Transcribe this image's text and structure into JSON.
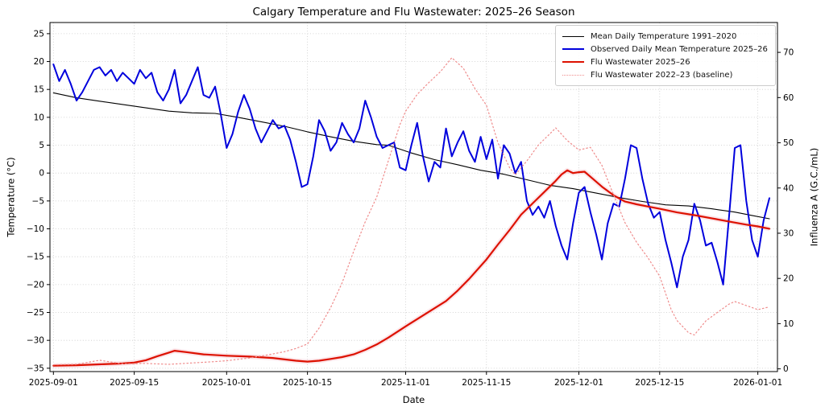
{
  "chart_data": {
    "type": "line",
    "title": "Calgary Temperature and Flu Wastewater: 2025–26 Season",
    "xlabel": "Date",
    "ylabel_left": "Temperature (°C)",
    "ylabel_right": "Influenza A (G.C./mL)",
    "grid": {
      "on": true,
      "style": "dotted",
      "color": "#c9c9c9"
    },
    "band_color": "#f4b8c4",
    "legend": {
      "position": "upper right"
    },
    "x_axis": {
      "start_date": "2025-09-01",
      "tick_labels": [
        "2025-09-01",
        "2025-09-15",
        "2025-10-01",
        "2025-10-15",
        "2025-11-01",
        "2025-11-15",
        "2025-12-01",
        "2025-12-15",
        "2026-01-01"
      ],
      "tick_days": [
        0,
        14,
        30,
        44,
        61,
        75,
        91,
        105,
        122
      ],
      "domain_days": [
        -0.6,
        125.4
      ]
    },
    "y_left": {
      "lim": [
        -35.6,
        27.0
      ],
      "ticks": [
        25,
        20,
        15,
        10,
        5,
        0,
        -5,
        -10,
        -15,
        -20,
        -25,
        -30,
        -35
      ]
    },
    "y_right": {
      "lim": [
        -0.6,
        76.6
      ],
      "ticks": [
        70,
        60,
        50,
        40,
        30,
        20,
        10,
        0
      ]
    },
    "series": [
      {
        "id": "mean_temp_1991_2020",
        "name": "Mean Daily Temperature 1991–2020",
        "axis": "left",
        "color": "#000000",
        "width": 1.1,
        "dash": "solid",
        "points": [
          [
            0,
            14.4
          ],
          [
            4,
            13.5
          ],
          [
            8,
            12.9
          ],
          [
            12,
            12.3
          ],
          [
            16,
            11.7
          ],
          [
            20,
            11.1
          ],
          [
            24,
            10.8
          ],
          [
            28,
            10.7
          ],
          [
            32,
            10.0
          ],
          [
            36,
            9.2
          ],
          [
            40,
            8.4
          ],
          [
            44,
            7.4
          ],
          [
            48,
            6.5
          ],
          [
            52,
            5.7
          ],
          [
            56,
            5.1
          ],
          [
            58,
            5.0
          ],
          [
            62,
            3.6
          ],
          [
            66,
            2.4
          ],
          [
            70,
            1.5
          ],
          [
            74,
            0.5
          ],
          [
            78,
            -0.2
          ],
          [
            82,
            -1.2
          ],
          [
            86,
            -2.2
          ],
          [
            90,
            -2.8
          ],
          [
            94,
            -3.6
          ],
          [
            98,
            -4.4
          ],
          [
            102,
            -5.1
          ],
          [
            106,
            -5.7
          ],
          [
            110,
            -5.9
          ],
          [
            114,
            -6.4
          ],
          [
            118,
            -7.0
          ],
          [
            121,
            -7.6
          ],
          [
            124,
            -8.2
          ]
        ]
      },
      {
        "id": "observed_temp_2025_26",
        "name": "Observed Daily Mean Temperature 2025–26",
        "axis": "left",
        "color": "#0000dd",
        "width": 2.0,
        "dash": "solid",
        "start_day": 0,
        "values": [
          19.5,
          16.5,
          18.5,
          16,
          13,
          14.5,
          16.5,
          18.5,
          19,
          17.5,
          18.5,
          16.5,
          18,
          17,
          16,
          18.5,
          17,
          18,
          14.5,
          13,
          15,
          18.5,
          12.5,
          14,
          16.5,
          19,
          14,
          13.5,
          15.5,
          10.5,
          4.5,
          7,
          11,
          14,
          11.5,
          8,
          5.5,
          7.5,
          9.5,
          8,
          8.5,
          6,
          2,
          -2.5,
          -2,
          3,
          9.5,
          7.5,
          4,
          5.5,
          9,
          7,
          5.5,
          8,
          13,
          10,
          6.5,
          4.5,
          5,
          5.5,
          1,
          0.5,
          5,
          9,
          3,
          -1.5,
          2,
          1,
          8,
          3,
          5.5,
          7.5,
          4,
          2,
          6.5,
          2.5,
          6,
          -1,
          5,
          3.5,
          0,
          2,
          -5,
          -7.5,
          -6,
          -8,
          -5,
          -9.5,
          -13,
          -15.5,
          -9,
          -3.5,
          -2.5,
          -7,
          -11,
          -15.5,
          -9,
          -5.5,
          -6,
          -1,
          5,
          4.5,
          -1,
          -5.5,
          -8,
          -7,
          -12,
          -16,
          -20.5,
          -15,
          -12,
          -5.5,
          -8.5,
          -13,
          -12.5,
          -16,
          -20,
          -8,
          4.5,
          5,
          -5,
          -12,
          -15,
          -8.5,
          -4.5
        ]
      },
      {
        "id": "flu_2025_26",
        "name": "Flu Wastewater 2025–26",
        "axis": "right",
        "color": "#dd1100",
        "width": 2.2,
        "dash": "solid",
        "points": [
          [
            0,
            0.7
          ],
          [
            4,
            0.8
          ],
          [
            8,
            1.0
          ],
          [
            12,
            1.2
          ],
          [
            14,
            1.4
          ],
          [
            16,
            1.9
          ],
          [
            18,
            2.8
          ],
          [
            20,
            3.6
          ],
          [
            21,
            4.0
          ],
          [
            23,
            3.7
          ],
          [
            26,
            3.2
          ],
          [
            30,
            2.9
          ],
          [
            34,
            2.7
          ],
          [
            38,
            2.4
          ],
          [
            42,
            1.8
          ],
          [
            44,
            1.6
          ],
          [
            46,
            1.8
          ],
          [
            48,
            2.2
          ],
          [
            50,
            2.6
          ],
          [
            52,
            3.2
          ],
          [
            54,
            4.2
          ],
          [
            56,
            5.4
          ],
          [
            58,
            6.9
          ],
          [
            61,
            9.4
          ],
          [
            63,
            11.0
          ],
          [
            65,
            12.6
          ],
          [
            68,
            15.0
          ],
          [
            70,
            17.3
          ],
          [
            72,
            19.9
          ],
          [
            75,
            24.2
          ],
          [
            77,
            27.5
          ],
          [
            79,
            30.7
          ],
          [
            81,
            34.1
          ],
          [
            83,
            36.6
          ],
          [
            85,
            39.1
          ],
          [
            87,
            41.6
          ],
          [
            88,
            43.0
          ],
          [
            89,
            43.9
          ],
          [
            90,
            43.3
          ],
          [
            91,
            43.5
          ],
          [
            92,
            43.6
          ],
          [
            93,
            42.5
          ],
          [
            95,
            40.3
          ],
          [
            97,
            38.4
          ],
          [
            99,
            37.0
          ],
          [
            101,
            36.4
          ],
          [
            103,
            35.9
          ],
          [
            105,
            35.4
          ],
          [
            108,
            34.6
          ],
          [
            111,
            34.0
          ],
          [
            114,
            33.3
          ],
          [
            117,
            32.6
          ],
          [
            120,
            31.9
          ],
          [
            122,
            31.5
          ],
          [
            124,
            31.0
          ]
        ]
      },
      {
        "id": "flu_2022_23_baseline",
        "name": "Flu Wastewater 2022–23 (baseline)",
        "axis": "right",
        "color": "#ef8b8b",
        "width": 1.2,
        "dash": "dotted",
        "points": [
          [
            0,
            0.9
          ],
          [
            4,
            1.0
          ],
          [
            8,
            1.9
          ],
          [
            12,
            1.1
          ],
          [
            16,
            1.2
          ],
          [
            20,
            1.0
          ],
          [
            24,
            1.3
          ],
          [
            28,
            1.6
          ],
          [
            30,
            1.8
          ],
          [
            34,
            2.4
          ],
          [
            38,
            3.3
          ],
          [
            40,
            3.8
          ],
          [
            42,
            4.5
          ],
          [
            44,
            5.5
          ],
          [
            46,
            9.0
          ],
          [
            48,
            13.5
          ],
          [
            50,
            19.0
          ],
          [
            52,
            26.0
          ],
          [
            54,
            32.5
          ],
          [
            56,
            38.0
          ],
          [
            58,
            46.0
          ],
          [
            60,
            54.0
          ],
          [
            61,
            57.0
          ],
          [
            63,
            60.7
          ],
          [
            65,
            63.3
          ],
          [
            67,
            65.7
          ],
          [
            69,
            68.8
          ],
          [
            71,
            66.5
          ],
          [
            73,
            62.0
          ],
          [
            75,
            58.3
          ],
          [
            77,
            50.0
          ],
          [
            79,
            44.5
          ],
          [
            80,
            42.9
          ],
          [
            82,
            46.0
          ],
          [
            84,
            49.5
          ],
          [
            86,
            52.0
          ],
          [
            87,
            53.3
          ],
          [
            89,
            50.5
          ],
          [
            91,
            48.4
          ],
          [
            93,
            49.0
          ],
          [
            95,
            45.0
          ],
          [
            97,
            38.5
          ],
          [
            99,
            32.3
          ],
          [
            101,
            28.0
          ],
          [
            103,
            24.5
          ],
          [
            105,
            20.5
          ],
          [
            107,
            13.1
          ],
          [
            108,
            10.7
          ],
          [
            110,
            8.0
          ],
          [
            111,
            7.5
          ],
          [
            113,
            10.6
          ],
          [
            115,
            12.5
          ],
          [
            117,
            14.3
          ],
          [
            118,
            14.9
          ],
          [
            120,
            14.0
          ],
          [
            122,
            13.1
          ],
          [
            124,
            13.7
          ]
        ]
      }
    ]
  }
}
